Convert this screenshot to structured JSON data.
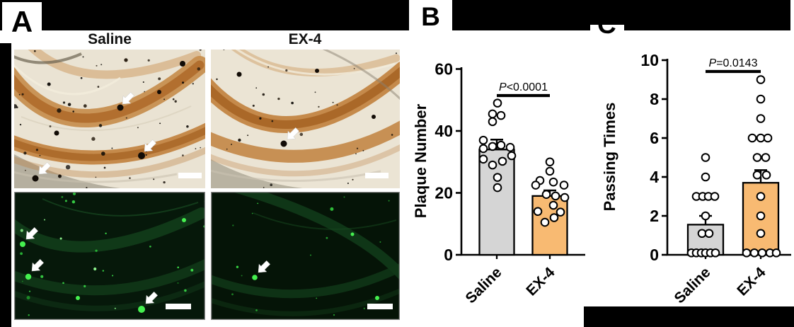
{
  "panels": {
    "a": {
      "label": "A",
      "columns": [
        "Saline",
        "EX-4"
      ],
      "images": [
        {
          "column": "Saline",
          "row": "top-brightfield",
          "arrow_count": 3,
          "scale_bar": true
        },
        {
          "column": "EX-4",
          "row": "top-brightfield",
          "arrow_count": 1,
          "scale_bar": true
        },
        {
          "column": "Saline",
          "row": "bottom-fluorescence",
          "arrow_count": 3,
          "scale_bar": true
        },
        {
          "column": "EX-4",
          "row": "bottom-fluorescence",
          "arrow_count": 1,
          "scale_bar": true
        }
      ]
    },
    "b": {
      "label": "B"
    },
    "c": {
      "label": "C"
    }
  },
  "chart_data": [
    {
      "type": "bar",
      "panel": "B",
      "title": "",
      "xlabel": "",
      "ylabel": "Plaque Number",
      "ylim": [
        0,
        60
      ],
      "yticks": [
        0,
        20,
        40,
        60
      ],
      "categories": [
        "Saline",
        "EX-4"
      ],
      "significance": "P<0.0001",
      "bar_colors": [
        "#D5D5D5",
        "#F8BA72"
      ],
      "point_style": "open-circle",
      "series": [
        {
          "name": "Saline",
          "mean": 34,
          "sem_top": 37.2,
          "points": [
            [
              49,
              1
            ],
            [
              45.5,
              -6
            ],
            [
              45,
              6
            ],
            [
              43,
              -6
            ],
            [
              37,
              -19
            ],
            [
              35.4,
              6
            ],
            [
              35,
              -6
            ],
            [
              34.7,
              19
            ],
            [
              34.3,
              -19
            ],
            [
              32,
              21
            ],
            [
              30.9,
              -19
            ],
            [
              30.2,
              8
            ],
            [
              29,
              -6
            ],
            [
              25,
              1
            ],
            [
              21.7,
              1
            ]
          ]
        },
        {
          "name": "EX-4",
          "mean": 19,
          "sem_top": 20.8,
          "points": [
            [
              30,
              0
            ],
            [
              27,
              0
            ],
            [
              24,
              -14
            ],
            [
              23.5,
              5
            ],
            [
              22.5,
              -20
            ],
            [
              22.5,
              20
            ],
            [
              19.5,
              -5
            ],
            [
              19,
              8
            ],
            [
              18.5,
              21
            ],
            [
              16,
              5
            ],
            [
              14,
              -17
            ],
            [
              13.8,
              15
            ],
            [
              12,
              6
            ],
            [
              10.5,
              -7
            ]
          ]
        }
      ]
    },
    {
      "type": "bar",
      "panel": "C",
      "title": "",
      "xlabel": "",
      "ylabel": "Passing Times",
      "ylim": [
        0,
        10
      ],
      "yticks": [
        0,
        2,
        4,
        6,
        8,
        10
      ],
      "categories": [
        "Saline",
        "EX-4"
      ],
      "significance": "P=0.0143",
      "bar_colors": [
        "#D5D5D5",
        "#F8BA72"
      ],
      "point_style": "open-circle",
      "series": [
        {
          "name": "Saline",
          "mean": 1.55,
          "sem_top": 2.0,
          "points": [
            [
              5,
              0
            ],
            [
              4,
              0
            ],
            [
              3,
              -13
            ],
            [
              3,
              -4
            ],
            [
              3,
              4
            ],
            [
              3,
              13
            ],
            [
              2,
              0
            ],
            [
              1.1,
              -5
            ],
            [
              1.1,
              5
            ],
            [
              0.1,
              -20
            ],
            [
              0.1,
              -13
            ],
            [
              0.1,
              -6
            ],
            [
              0.1,
              0
            ],
            [
              0.1,
              7
            ],
            [
              0.1,
              14
            ]
          ]
        },
        {
          "name": "EX-4",
          "mean": 3.7,
          "sem_top": 4.35,
          "points": [
            [
              9,
              0
            ],
            [
              8,
              0
            ],
            [
              7,
              0
            ],
            [
              6,
              -12
            ],
            [
              6,
              0
            ],
            [
              6,
              10
            ],
            [
              5,
              -5
            ],
            [
              5,
              7
            ],
            [
              4.1,
              -5
            ],
            [
              4.1,
              8
            ],
            [
              3,
              0
            ],
            [
              2,
              0
            ],
            [
              1.1,
              0
            ],
            [
              0.1,
              -20
            ],
            [
              0.1,
              -9
            ],
            [
              0.1,
              2
            ],
            [
              0.1,
              13
            ],
            [
              0.1,
              22
            ]
          ]
        }
      ]
    }
  ]
}
